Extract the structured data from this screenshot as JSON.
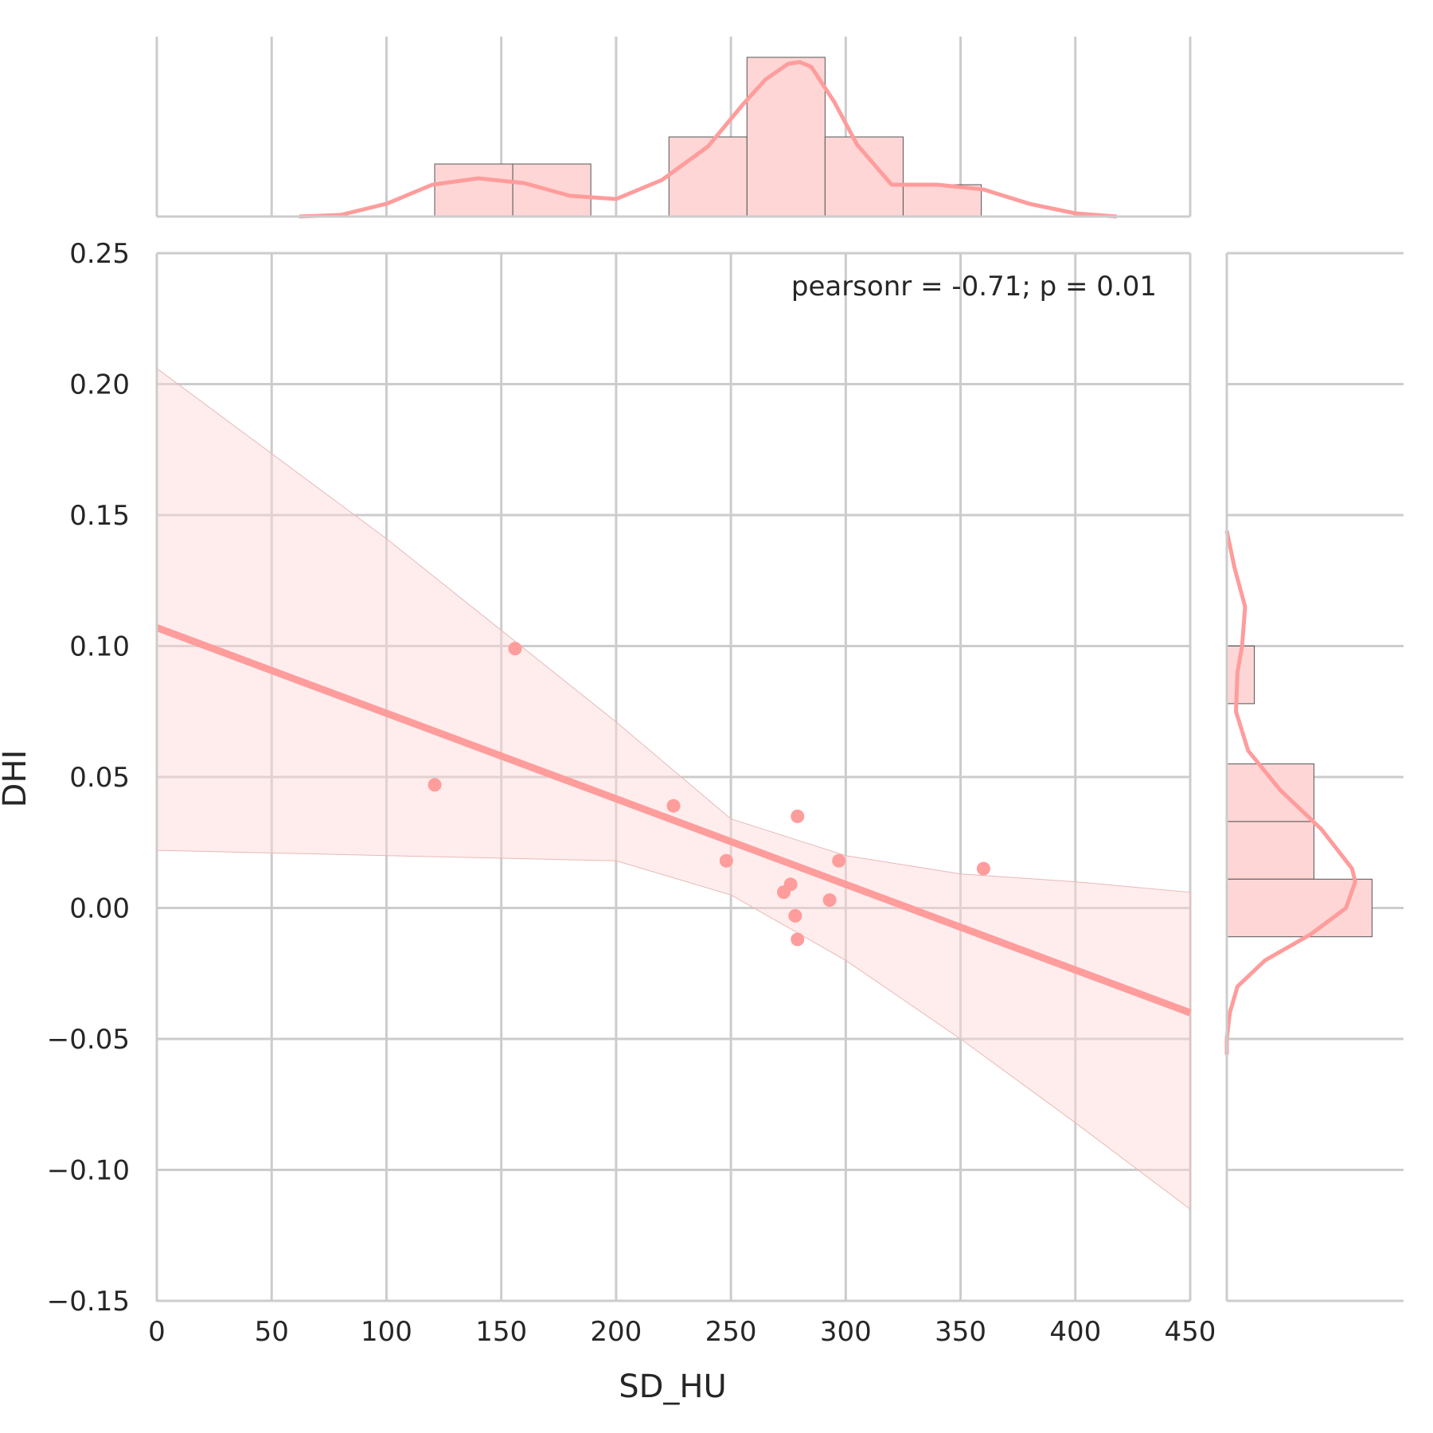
{
  "chart_data": {
    "type": "scatter",
    "xlabel": "SD_HU",
    "ylabel": "DHI",
    "xlim": [
      0,
      450
    ],
    "ylim": [
      -0.15,
      0.25
    ],
    "x_ticks": [
      "0",
      "50",
      "100",
      "150",
      "200",
      "250",
      "300",
      "350",
      "400",
      "450"
    ],
    "y_ticks": [
      "0.25",
      "0.20",
      "0.15",
      "0.10",
      "0.05",
      "0.00",
      "−0.05",
      "−0.10",
      "−0.15"
    ],
    "grid": true,
    "annotation": "pearsonr = -0.71; p = 0.01",
    "points": [
      {
        "x": 121,
        "y": 0.047
      },
      {
        "x": 156,
        "y": 0.099
      },
      {
        "x": 225,
        "y": 0.039
      },
      {
        "x": 248,
        "y": 0.018
      },
      {
        "x": 273,
        "y": 0.006
      },
      {
        "x": 276,
        "y": 0.009
      },
      {
        "x": 278,
        "y": -0.003
      },
      {
        "x": 279,
        "y": 0.035
      },
      {
        "x": 279,
        "y": -0.012
      },
      {
        "x": 293,
        "y": 0.003
      },
      {
        "x": 297,
        "y": 0.018
      },
      {
        "x": 360,
        "y": 0.015
      }
    ],
    "regression": {
      "x": [
        0,
        450
      ],
      "y": [
        0.107,
        -0.04
      ]
    },
    "confidence_band": {
      "x": [
        0,
        100,
        200,
        250,
        300,
        350,
        400,
        450
      ],
      "upper": [
        0.206,
        0.141,
        0.071,
        0.034,
        0.02,
        0.013,
        0.01,
        0.006
      ],
      "lower": [
        0.022,
        0.02,
        0.018,
        0.005,
        -0.02,
        -0.05,
        -0.082,
        -0.115
      ]
    },
    "marginal_x": {
      "bins": [
        {
          "x0": 121,
          "x1": 155,
          "density": 0.33
        },
        {
          "x0": 155,
          "x1": 189,
          "density": 0.33
        },
        {
          "x0": 223,
          "x1": 257,
          "density": 0.5
        },
        {
          "x0": 257,
          "x1": 291,
          "density": 1.0
        },
        {
          "x0": 291,
          "x1": 325,
          "density": 0.5
        },
        {
          "x0": 325,
          "x1": 359,
          "density": 0.2
        }
      ],
      "kde": {
        "x": [
          62,
          80,
          100,
          120,
          140,
          160,
          180,
          200,
          220,
          240,
          255,
          265,
          275,
          280,
          285,
          295,
          305,
          320,
          340,
          360,
          380,
          400,
          418
        ],
        "y": [
          0.0,
          0.01,
          0.08,
          0.2,
          0.24,
          0.21,
          0.13,
          0.11,
          0.23,
          0.44,
          0.7,
          0.86,
          0.96,
          0.97,
          0.94,
          0.72,
          0.45,
          0.2,
          0.2,
          0.17,
          0.08,
          0.02,
          0.0
        ]
      }
    },
    "marginal_y": {
      "bins": [
        {
          "y0": 0.078,
          "y1": 0.1,
          "density": 0.18
        },
        {
          "y0": 0.033,
          "y1": 0.055,
          "density": 0.57
        },
        {
          "y0": 0.011,
          "y1": 0.033,
          "density": 0.57
        },
        {
          "y0": -0.011,
          "y1": 0.011,
          "density": 0.95
        }
      ],
      "kde": {
        "y": [
          0.144,
          0.13,
          0.115,
          0.1,
          0.09,
          0.075,
          0.06,
          0.045,
          0.03,
          0.015,
          0.01,
          0.0,
          -0.01,
          -0.02,
          -0.03,
          -0.04,
          -0.05,
          -0.056
        ],
        "x": [
          0.0,
          0.05,
          0.12,
          0.1,
          0.07,
          0.06,
          0.14,
          0.35,
          0.62,
          0.82,
          0.84,
          0.78,
          0.55,
          0.25,
          0.07,
          0.02,
          0.0,
          0.0
        ]
      }
    },
    "colors": {
      "main": "#ff9c9c",
      "band": "#ffd6d6",
      "bar_fill": "#ffd6d6",
      "bar_edge": "#555555",
      "grid": "#cccccc",
      "text": "#262626"
    }
  }
}
